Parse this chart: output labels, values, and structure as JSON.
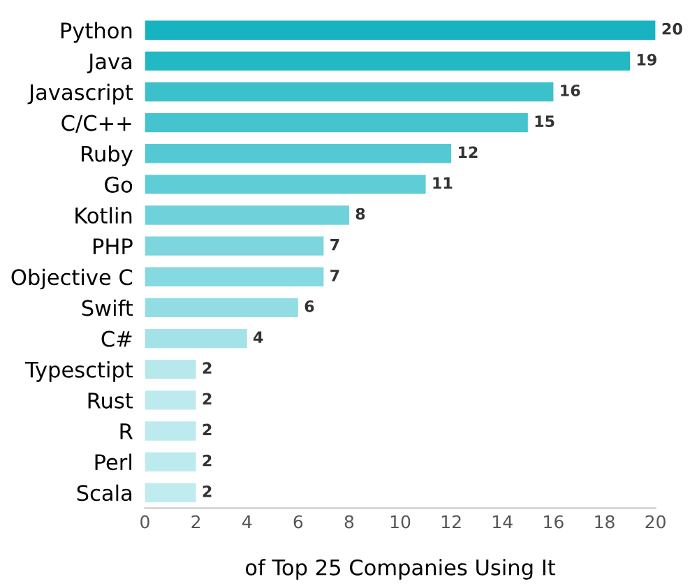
{
  "chart_data": {
    "type": "bar",
    "orientation": "horizontal",
    "xlabel": "of Top 25 Companies Using It",
    "categories": [
      "Python",
      "Java",
      "Javascript",
      "C/C++",
      "Ruby",
      "Go",
      "Kotlin",
      "PHP",
      "Objective C",
      "Swift",
      "C#",
      "Typesctipt",
      "Rust",
      "R",
      "Perl",
      "Scala"
    ],
    "values": [
      20,
      19,
      16,
      15,
      12,
      11,
      8,
      7,
      7,
      6,
      4,
      2,
      2,
      2,
      2,
      2
    ],
    "colors": [
      "#18b3c0",
      "#22b8c4",
      "#3cc0cb",
      "#45c3ce",
      "#55c9d3",
      "#5ecdd6",
      "#6fd2da",
      "#7dd6dd",
      "#85d9e0",
      "#92dde3",
      "#a3e2e7",
      "#b6e8ec",
      "#bdeaee",
      "#bdeaee",
      "#bdeaee",
      "#c0ebef"
    ],
    "xlim": [
      0,
      20
    ],
    "xticks": [
      0,
      2,
      4,
      6,
      8,
      10,
      12,
      14,
      16,
      18,
      20
    ],
    "data_labels": true,
    "grid": false
  }
}
